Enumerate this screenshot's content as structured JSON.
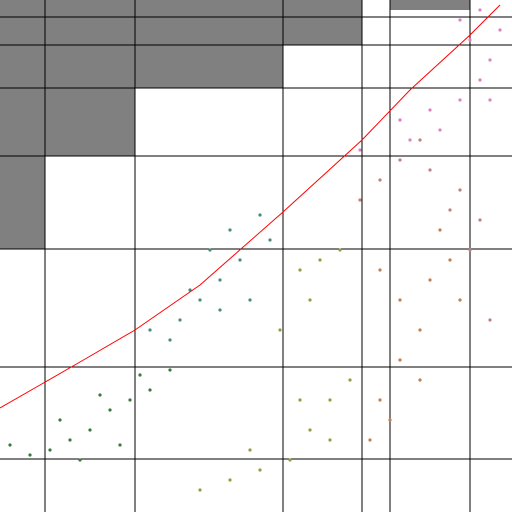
{
  "chart_data": {
    "type": "scatter",
    "xlim": [
      0,
      512
    ],
    "ylim": [
      0,
      512
    ],
    "xticks": [
      45,
      135,
      283,
      362,
      390,
      470
    ],
    "yticks": [
      53,
      145,
      263,
      356,
      424,
      467,
      495
    ],
    "grid": true,
    "grid_color": "#000000",
    "series": [
      {
        "color": "#3a7a3a",
        "x": [
          10,
          30,
          50,
          70,
          90,
          110,
          130,
          150,
          170,
          60,
          100,
          140,
          80,
          120
        ],
        "values": [
          67,
          57,
          62,
          72,
          82,
          102,
          112,
          122,
          142,
          92,
          117,
          137,
          52,
          67
        ]
      },
      {
        "color": "#4a8a7a",
        "x": [
          150,
          180,
          200,
          220,
          240,
          230,
          260,
          210,
          190,
          170,
          250,
          270,
          220
        ],
        "values": [
          182,
          192,
          212,
          232,
          252,
          282,
          297,
          262,
          222,
          172,
          212,
          272,
          202
        ]
      },
      {
        "color": "#9a9a40",
        "x": [
          200,
          230,
          260,
          290,
          310,
          330,
          350,
          300,
          280,
          310,
          300,
          320,
          340,
          250,
          330
        ],
        "values": [
          22,
          32,
          42,
          52,
          82,
          112,
          132,
          112,
          182,
          212,
          242,
          252,
          262,
          62,
          72
        ]
      },
      {
        "color": "#c08050",
        "x": [
          380,
          400,
          420,
          400,
          380,
          370,
          430,
          450,
          420,
          390,
          460,
          440
        ],
        "values": [
          242,
          212,
          182,
          152,
          112,
          72,
          232,
          252,
          132,
          92,
          212,
          282
        ]
      },
      {
        "color": "#c08080",
        "x": [
          360,
          380,
          400,
          430,
          460,
          480,
          450,
          420,
          470,
          490
        ],
        "values": [
          312,
          332,
          352,
          342,
          322,
          292,
          302,
          372,
          262,
          192
        ]
      },
      {
        "color": "#e080c0",
        "x": [
          400,
          430,
          460,
          480,
          490,
          470,
          460,
          440,
          410,
          490,
          500,
          360,
          480
        ],
        "values": [
          392,
          402,
          412,
          432,
          452,
          472,
          492,
          382,
          372,
          412,
          482,
          362,
          502
        ]
      }
    ],
    "line": {
      "color": "#ff0000",
      "x": [
        0,
        40,
        80,
        135,
        200,
        283,
        362,
        410,
        470,
        500
      ],
      "values": [
        104,
        127,
        150,
        182,
        227,
        300,
        372,
        422,
        477,
        507
      ]
    }
  }
}
